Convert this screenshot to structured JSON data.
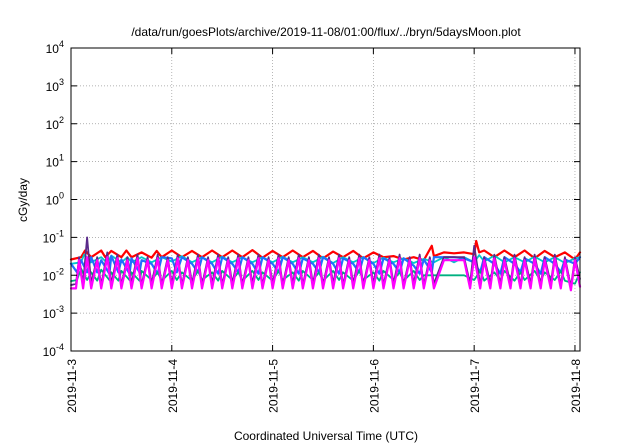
{
  "chart_data": {
    "type": "line",
    "title": "/data/run/goesPlots/archive/2019-11-08/01:00/flux/../bryn/5daysMoon.plot",
    "xlabel": "Coordinated Universal Time (UTC)",
    "ylabel": "cGy/day",
    "yscale": "log",
    "ylim": [
      0.0001,
      10000
    ],
    "xlim": [
      0,
      5.05
    ],
    "grid": true,
    "x_ticks": [
      {
        "value": 0,
        "label": "2019-11-3"
      },
      {
        "value": 1,
        "label": "2019-11-4"
      },
      {
        "value": 2,
        "label": "2019-11-5"
      },
      {
        "value": 3,
        "label": "2019-11-6"
      },
      {
        "value": 4,
        "label": "2019-11-7"
      },
      {
        "value": 5,
        "label": "2019-11-8"
      }
    ],
    "y_ticks": [
      {
        "value": 0.0001,
        "base": "10",
        "exp": "-4"
      },
      {
        "value": 0.001,
        "base": "10",
        "exp": "-3"
      },
      {
        "value": 0.01,
        "base": "10",
        "exp": "-2"
      },
      {
        "value": 0.1,
        "base": "10",
        "exp": "-1"
      },
      {
        "value": 1,
        "base": "10",
        "exp": "0"
      },
      {
        "value": 10,
        "base": "10",
        "exp": "1"
      },
      {
        "value": 100,
        "base": "10",
        "exp": "2"
      },
      {
        "value": 1000,
        "base": "10",
        "exp": "3"
      },
      {
        "value": 10000,
        "base": "10",
        "exp": "4"
      }
    ],
    "series": [
      {
        "color": "#ff0000",
        "x": [
          0,
          0.1,
          0.14,
          0.2,
          0.3,
          0.34,
          0.4,
          0.5,
          0.55,
          0.6,
          0.7,
          0.8,
          0.85,
          0.9,
          1.0,
          1.1,
          1.2,
          1.3,
          1.4,
          1.5,
          1.6,
          1.7,
          1.8,
          1.9,
          2.0,
          2.1,
          2.2,
          2.3,
          2.4,
          2.5,
          2.6,
          2.7,
          2.8,
          2.9,
          3.0,
          3.1,
          3.2,
          3.3,
          3.4,
          3.5,
          3.58,
          3.6,
          3.7,
          3.8,
          3.9,
          4.0,
          4.02,
          4.05,
          4.1,
          4.2,
          4.3,
          4.4,
          4.5,
          4.6,
          4.7,
          4.8,
          4.9,
          5.0,
          5.05
        ],
        "values": [
          0.026,
          0.03,
          0.045,
          0.03,
          0.045,
          0.03,
          0.044,
          0.03,
          0.045,
          0.03,
          0.04,
          0.029,
          0.044,
          0.03,
          0.045,
          0.03,
          0.044,
          0.03,
          0.045,
          0.03,
          0.045,
          0.03,
          0.046,
          0.029,
          0.044,
          0.03,
          0.045,
          0.03,
          0.044,
          0.028,
          0.042,
          0.03,
          0.044,
          0.028,
          0.04,
          0.03,
          0.032,
          0.026,
          0.03,
          0.025,
          0.06,
          0.032,
          0.04,
          0.038,
          0.04,
          0.036,
          0.08,
          0.04,
          0.045,
          0.03,
          0.045,
          0.03,
          0.045,
          0.028,
          0.044,
          0.03,
          0.04,
          0.026,
          0.04
        ]
      },
      {
        "color": "#00c8c8",
        "x": [
          0,
          0.1,
          0.13,
          0.2,
          0.3,
          0.36,
          0.4,
          0.5,
          0.56,
          0.6,
          0.7,
          0.8,
          0.9,
          1.0,
          1.1,
          1.2,
          1.3,
          1.4,
          1.5,
          1.6,
          1.7,
          1.8,
          1.9,
          2.0,
          2.1,
          2.2,
          2.3,
          2.4,
          2.5,
          2.6,
          2.7,
          2.8,
          2.9,
          3.0,
          3.1,
          3.2,
          3.3,
          3.4,
          3.5,
          3.6,
          3.7,
          3.8,
          3.9,
          4.0,
          4.05,
          4.1,
          4.2,
          4.3,
          4.4,
          4.5,
          4.6,
          4.7,
          4.8,
          4.9,
          5.0,
          5.05
        ],
        "values": [
          0.02,
          0.022,
          0.035,
          0.022,
          0.03,
          0.021,
          0.033,
          0.022,
          0.03,
          0.022,
          0.03,
          0.022,
          0.03,
          0.023,
          0.032,
          0.022,
          0.03,
          0.022,
          0.031,
          0.022,
          0.03,
          0.022,
          0.03,
          0.022,
          0.031,
          0.022,
          0.03,
          0.022,
          0.031,
          0.021,
          0.03,
          0.022,
          0.03,
          0.021,
          0.029,
          0.022,
          0.028,
          0.021,
          0.027,
          0.022,
          0.03,
          0.022,
          0.03,
          0.022,
          0.034,
          0.023,
          0.033,
          0.022,
          0.03,
          0.022,
          0.031,
          0.022,
          0.03,
          0.021,
          0.028,
          0.03
        ]
      },
      {
        "color": "#2070ff",
        "x": [
          0,
          0.06,
          0.1,
          0.16,
          0.2,
          0.26,
          0.3,
          0.38,
          0.4,
          0.47,
          0.5,
          0.58,
          0.6,
          0.68,
          0.7,
          0.8,
          0.86,
          0.9,
          1.0,
          1.05,
          1.1,
          1.2,
          1.26,
          1.3,
          1.4,
          1.46,
          1.5,
          1.6,
          1.66,
          1.7,
          1.8,
          1.86,
          1.9,
          2.0,
          2.06,
          2.1,
          2.2,
          2.26,
          2.3,
          2.4,
          2.46,
          2.5,
          2.6,
          2.66,
          2.7,
          2.8,
          2.86,
          2.9,
          3.0,
          3.06,
          3.1,
          3.2,
          3.26,
          3.3,
          3.4,
          3.46,
          3.5,
          3.58,
          3.6,
          3.7,
          3.8,
          3.9,
          4.0,
          4.06,
          4.1,
          4.2,
          4.26,
          4.3,
          4.4,
          4.46,
          4.5,
          4.6,
          4.66,
          4.7,
          4.8,
          4.86,
          4.9,
          5.0,
          5.05
        ],
        "values": [
          0.02,
          0.012,
          0.025,
          0.012,
          0.03,
          0.012,
          0.025,
          0.011,
          0.032,
          0.012,
          0.026,
          0.011,
          0.028,
          0.012,
          0.025,
          0.02,
          0.011,
          0.03,
          0.028,
          0.012,
          0.03,
          0.02,
          0.012,
          0.03,
          0.02,
          0.011,
          0.03,
          0.02,
          0.012,
          0.03,
          0.02,
          0.011,
          0.03,
          0.02,
          0.012,
          0.03,
          0.02,
          0.011,
          0.028,
          0.02,
          0.012,
          0.03,
          0.02,
          0.011,
          0.028,
          0.02,
          0.012,
          0.03,
          0.02,
          0.011,
          0.028,
          0.02,
          0.012,
          0.028,
          0.018,
          0.011,
          0.026,
          0.012,
          0.03,
          0.03,
          0.03,
          0.028,
          0.022,
          0.012,
          0.03,
          0.02,
          0.011,
          0.03,
          0.02,
          0.012,
          0.028,
          0.02,
          0.011,
          0.03,
          0.02,
          0.012,
          0.026,
          0.02,
          0.03
        ]
      },
      {
        "color": "#00b080",
        "x": [
          0,
          0.06,
          0.1,
          0.16,
          0.2,
          0.26,
          0.3,
          0.38,
          0.4,
          0.47,
          0.5,
          0.58,
          0.6,
          0.68,
          0.7,
          0.8,
          0.86,
          0.9,
          1.0,
          1.05,
          1.1,
          1.2,
          1.26,
          1.3,
          1.4,
          1.46,
          1.5,
          1.6,
          1.66,
          1.7,
          1.8,
          1.86,
          1.9,
          2.0,
          2.06,
          2.1,
          2.2,
          2.26,
          2.3,
          2.4,
          2.46,
          2.5,
          2.6,
          2.66,
          2.7,
          2.8,
          2.86,
          2.9,
          3.0,
          3.06,
          3.1,
          3.2,
          3.26,
          3.3,
          3.4,
          3.46,
          3.5,
          3.6,
          3.7,
          3.8,
          3.9,
          4.0,
          4.06,
          4.1,
          4.2,
          4.26,
          4.3,
          4.4,
          4.46,
          4.5,
          4.6,
          4.66,
          4.7,
          4.8,
          4.86,
          4.9,
          5.0,
          5.05
        ],
        "values": [
          0.007,
          0.0075,
          0.015,
          0.0075,
          0.012,
          0.0072,
          0.014,
          0.0075,
          0.012,
          0.0072,
          0.013,
          0.0075,
          0.012,
          0.0072,
          0.013,
          0.0075,
          0.012,
          0.0072,
          0.013,
          0.0075,
          0.012,
          0.0072,
          0.013,
          0.0075,
          0.012,
          0.0072,
          0.013,
          0.0075,
          0.012,
          0.0072,
          0.013,
          0.0075,
          0.012,
          0.0072,
          0.013,
          0.0075,
          0.012,
          0.0072,
          0.013,
          0.0075,
          0.012,
          0.0072,
          0.013,
          0.0075,
          0.012,
          0.0072,
          0.013,
          0.0075,
          0.012,
          0.0072,
          0.013,
          0.0075,
          0.012,
          0.0072,
          0.013,
          0.0075,
          0.01,
          0.01,
          0.01,
          0.01,
          0.01,
          0.0075,
          0.013,
          0.0072,
          0.012,
          0.0075,
          0.013,
          0.0072,
          0.012,
          0.0075,
          0.013,
          0.0072,
          0.012,
          0.0075,
          0.013,
          0.0072,
          0.006,
          0.012
        ]
      },
      {
        "color": "#5a2a8a",
        "x": [
          0,
          0.05,
          0.08,
          0.12,
          0.16,
          0.2,
          0.26,
          0.3,
          0.36,
          0.4,
          0.46,
          0.5,
          0.56,
          0.6,
          0.66,
          0.7,
          0.76,
          0.8,
          0.86,
          0.9,
          0.96,
          1.0,
          1.06,
          1.1,
          1.16,
          1.2,
          1.26,
          1.3,
          1.36,
          1.4,
          1.46,
          1.5,
          1.56,
          1.6,
          1.66,
          1.7,
          1.76,
          1.8,
          1.86,
          1.9,
          1.96,
          2.0,
          2.06,
          2.1,
          2.16,
          2.2,
          2.26,
          2.3,
          2.36,
          2.4,
          2.46,
          2.5,
          2.56,
          2.6,
          2.66,
          2.7,
          2.76,
          2.8,
          2.86,
          2.9,
          2.96,
          3.0,
          3.06,
          3.1,
          3.16,
          3.2,
          3.26,
          3.3,
          3.36,
          3.4,
          3.46,
          3.5,
          3.56,
          3.6,
          3.7,
          3.8,
          3.9,
          3.96,
          4.0,
          4.06,
          4.1,
          4.16,
          4.2,
          4.26,
          4.3,
          4.36,
          4.4,
          4.46,
          4.5,
          4.56,
          4.6,
          4.66,
          4.7,
          4.76,
          4.8,
          4.86,
          4.9,
          4.96,
          5.0,
          5.05
        ],
        "values": [
          0.0055,
          0.006,
          0.03,
          0.006,
          0.1,
          0.006,
          0.03,
          0.0055,
          0.04,
          0.006,
          0.035,
          0.0055,
          0.03,
          0.006,
          0.035,
          0.0055,
          0.03,
          0.006,
          0.035,
          0.0055,
          0.03,
          0.006,
          0.035,
          0.0055,
          0.03,
          0.006,
          0.035,
          0.0055,
          0.03,
          0.006,
          0.035,
          0.0055,
          0.03,
          0.006,
          0.035,
          0.0055,
          0.03,
          0.006,
          0.035,
          0.0055,
          0.03,
          0.006,
          0.035,
          0.0055,
          0.03,
          0.006,
          0.035,
          0.0055,
          0.03,
          0.006,
          0.035,
          0.0055,
          0.03,
          0.006,
          0.035,
          0.0055,
          0.03,
          0.006,
          0.035,
          0.0055,
          0.03,
          0.006,
          0.035,
          0.0055,
          0.03,
          0.006,
          0.035,
          0.0055,
          0.03,
          0.006,
          0.035,
          0.0055,
          0.03,
          0.006,
          0.03,
          0.03,
          0.03,
          0.006,
          0.06,
          0.0055,
          0.03,
          0.006,
          0.035,
          0.0055,
          0.03,
          0.006,
          0.035,
          0.0055,
          0.03,
          0.006,
          0.035,
          0.0055,
          0.03,
          0.006,
          0.035,
          0.0055,
          0.03,
          0.005,
          0.03,
          0.008
        ]
      },
      {
        "color": "#ff00ff",
        "x": [
          0,
          0.05,
          0.08,
          0.12,
          0.16,
          0.2,
          0.26,
          0.3,
          0.36,
          0.4,
          0.46,
          0.5,
          0.56,
          0.6,
          0.66,
          0.7,
          0.76,
          0.8,
          0.86,
          0.9,
          0.96,
          1.0,
          1.06,
          1.1,
          1.16,
          1.2,
          1.26,
          1.3,
          1.36,
          1.4,
          1.46,
          1.5,
          1.56,
          1.6,
          1.66,
          1.7,
          1.76,
          1.8,
          1.86,
          1.9,
          1.96,
          2.0,
          2.06,
          2.1,
          2.16,
          2.2,
          2.26,
          2.3,
          2.36,
          2.4,
          2.46,
          2.5,
          2.56,
          2.6,
          2.66,
          2.7,
          2.76,
          2.8,
          2.86,
          2.9,
          2.96,
          3.0,
          3.06,
          3.1,
          3.16,
          3.2,
          3.26,
          3.3,
          3.36,
          3.4,
          3.46,
          3.5,
          3.56,
          3.6,
          3.7,
          3.8,
          3.9,
          3.96,
          4.0,
          4.06,
          4.1,
          4.16,
          4.2,
          4.26,
          4.3,
          4.36,
          4.4,
          4.46,
          4.5,
          4.56,
          4.6,
          4.66,
          4.7,
          4.76,
          4.8,
          4.86,
          4.9,
          4.96,
          5.0,
          5.05
        ],
        "values": [
          0.0045,
          0.0045,
          0.025,
          0.0045,
          0.03,
          0.0045,
          0.025,
          0.0045,
          0.03,
          0.0045,
          0.028,
          0.0045,
          0.025,
          0.0045,
          0.028,
          0.0045,
          0.025,
          0.0045,
          0.028,
          0.0045,
          0.025,
          0.0045,
          0.028,
          0.0045,
          0.025,
          0.0045,
          0.028,
          0.0045,
          0.025,
          0.0045,
          0.028,
          0.0045,
          0.025,
          0.0045,
          0.028,
          0.0045,
          0.025,
          0.0045,
          0.028,
          0.0045,
          0.025,
          0.0045,
          0.028,
          0.0045,
          0.025,
          0.0045,
          0.028,
          0.0045,
          0.025,
          0.0045,
          0.028,
          0.0045,
          0.025,
          0.0045,
          0.028,
          0.0045,
          0.025,
          0.0045,
          0.028,
          0.0045,
          0.025,
          0.0045,
          0.028,
          0.0045,
          0.025,
          0.0045,
          0.028,
          0.0045,
          0.025,
          0.0045,
          0.028,
          0.0045,
          0.025,
          0.0045,
          0.025,
          0.025,
          0.025,
          0.0045,
          0.03,
          0.0045,
          0.025,
          0.0045,
          0.028,
          0.0045,
          0.025,
          0.0045,
          0.028,
          0.0045,
          0.025,
          0.0045,
          0.028,
          0.0045,
          0.025,
          0.0045,
          0.028,
          0.0045,
          0.025,
          0.004,
          0.025,
          0.005
        ]
      }
    ]
  }
}
